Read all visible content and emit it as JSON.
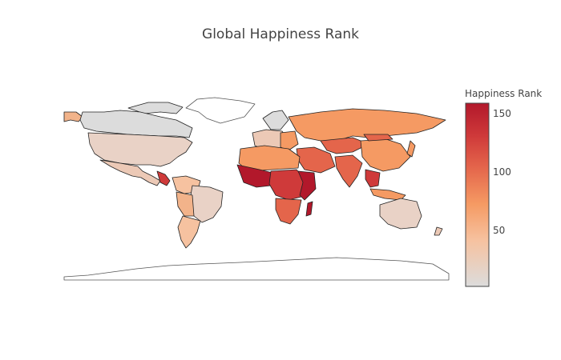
{
  "title": "Global Happiness Rank",
  "colorbar": {
    "title": "Happiness Rank",
    "ticks": [
      "150",
      "100",
      "50"
    ],
    "scale": [
      "#dcdcdc",
      "#f6c2a0",
      "#f59a63",
      "#e4654b",
      "#cf3a3a",
      "#b2182b"
    ]
  },
  "map": {
    "projection": "equirectangular",
    "land_color": "#ffffff",
    "border_color": "#222222"
  }
}
